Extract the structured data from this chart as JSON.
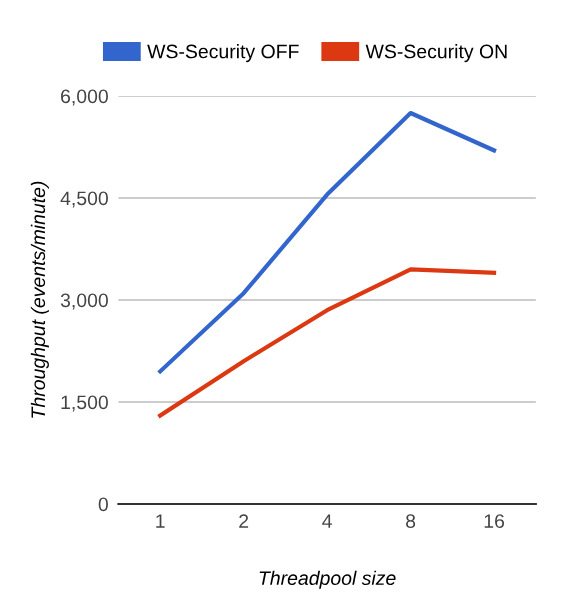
{
  "chart_data": {
    "type": "line",
    "xlabel": "Threadpool size",
    "ylabel": "Throughput (events/minute)",
    "categories": [
      "1",
      "2",
      "4",
      "8",
      "16"
    ],
    "series": [
      {
        "name": "WS-Security OFF",
        "color": "#3366cc",
        "values": [
          1950,
          3100,
          4550,
          5750,
          5200
        ]
      },
      {
        "name": "WS-Security ON",
        "color": "#dc3912",
        "values": [
          1300,
          2100,
          2850,
          3450,
          3400
        ]
      }
    ],
    "ylim": [
      0,
      6000
    ],
    "yticks": [
      {
        "value": 0,
        "label": "0"
      },
      {
        "value": 1500,
        "label": "1,500"
      },
      {
        "value": 3000,
        "label": "3,000"
      },
      {
        "value": 4500,
        "label": "4,500"
      },
      {
        "value": 6000,
        "label": "6,000"
      }
    ],
    "grid": "y",
    "legend": "top",
    "marker": "none",
    "line_style": "solid"
  }
}
